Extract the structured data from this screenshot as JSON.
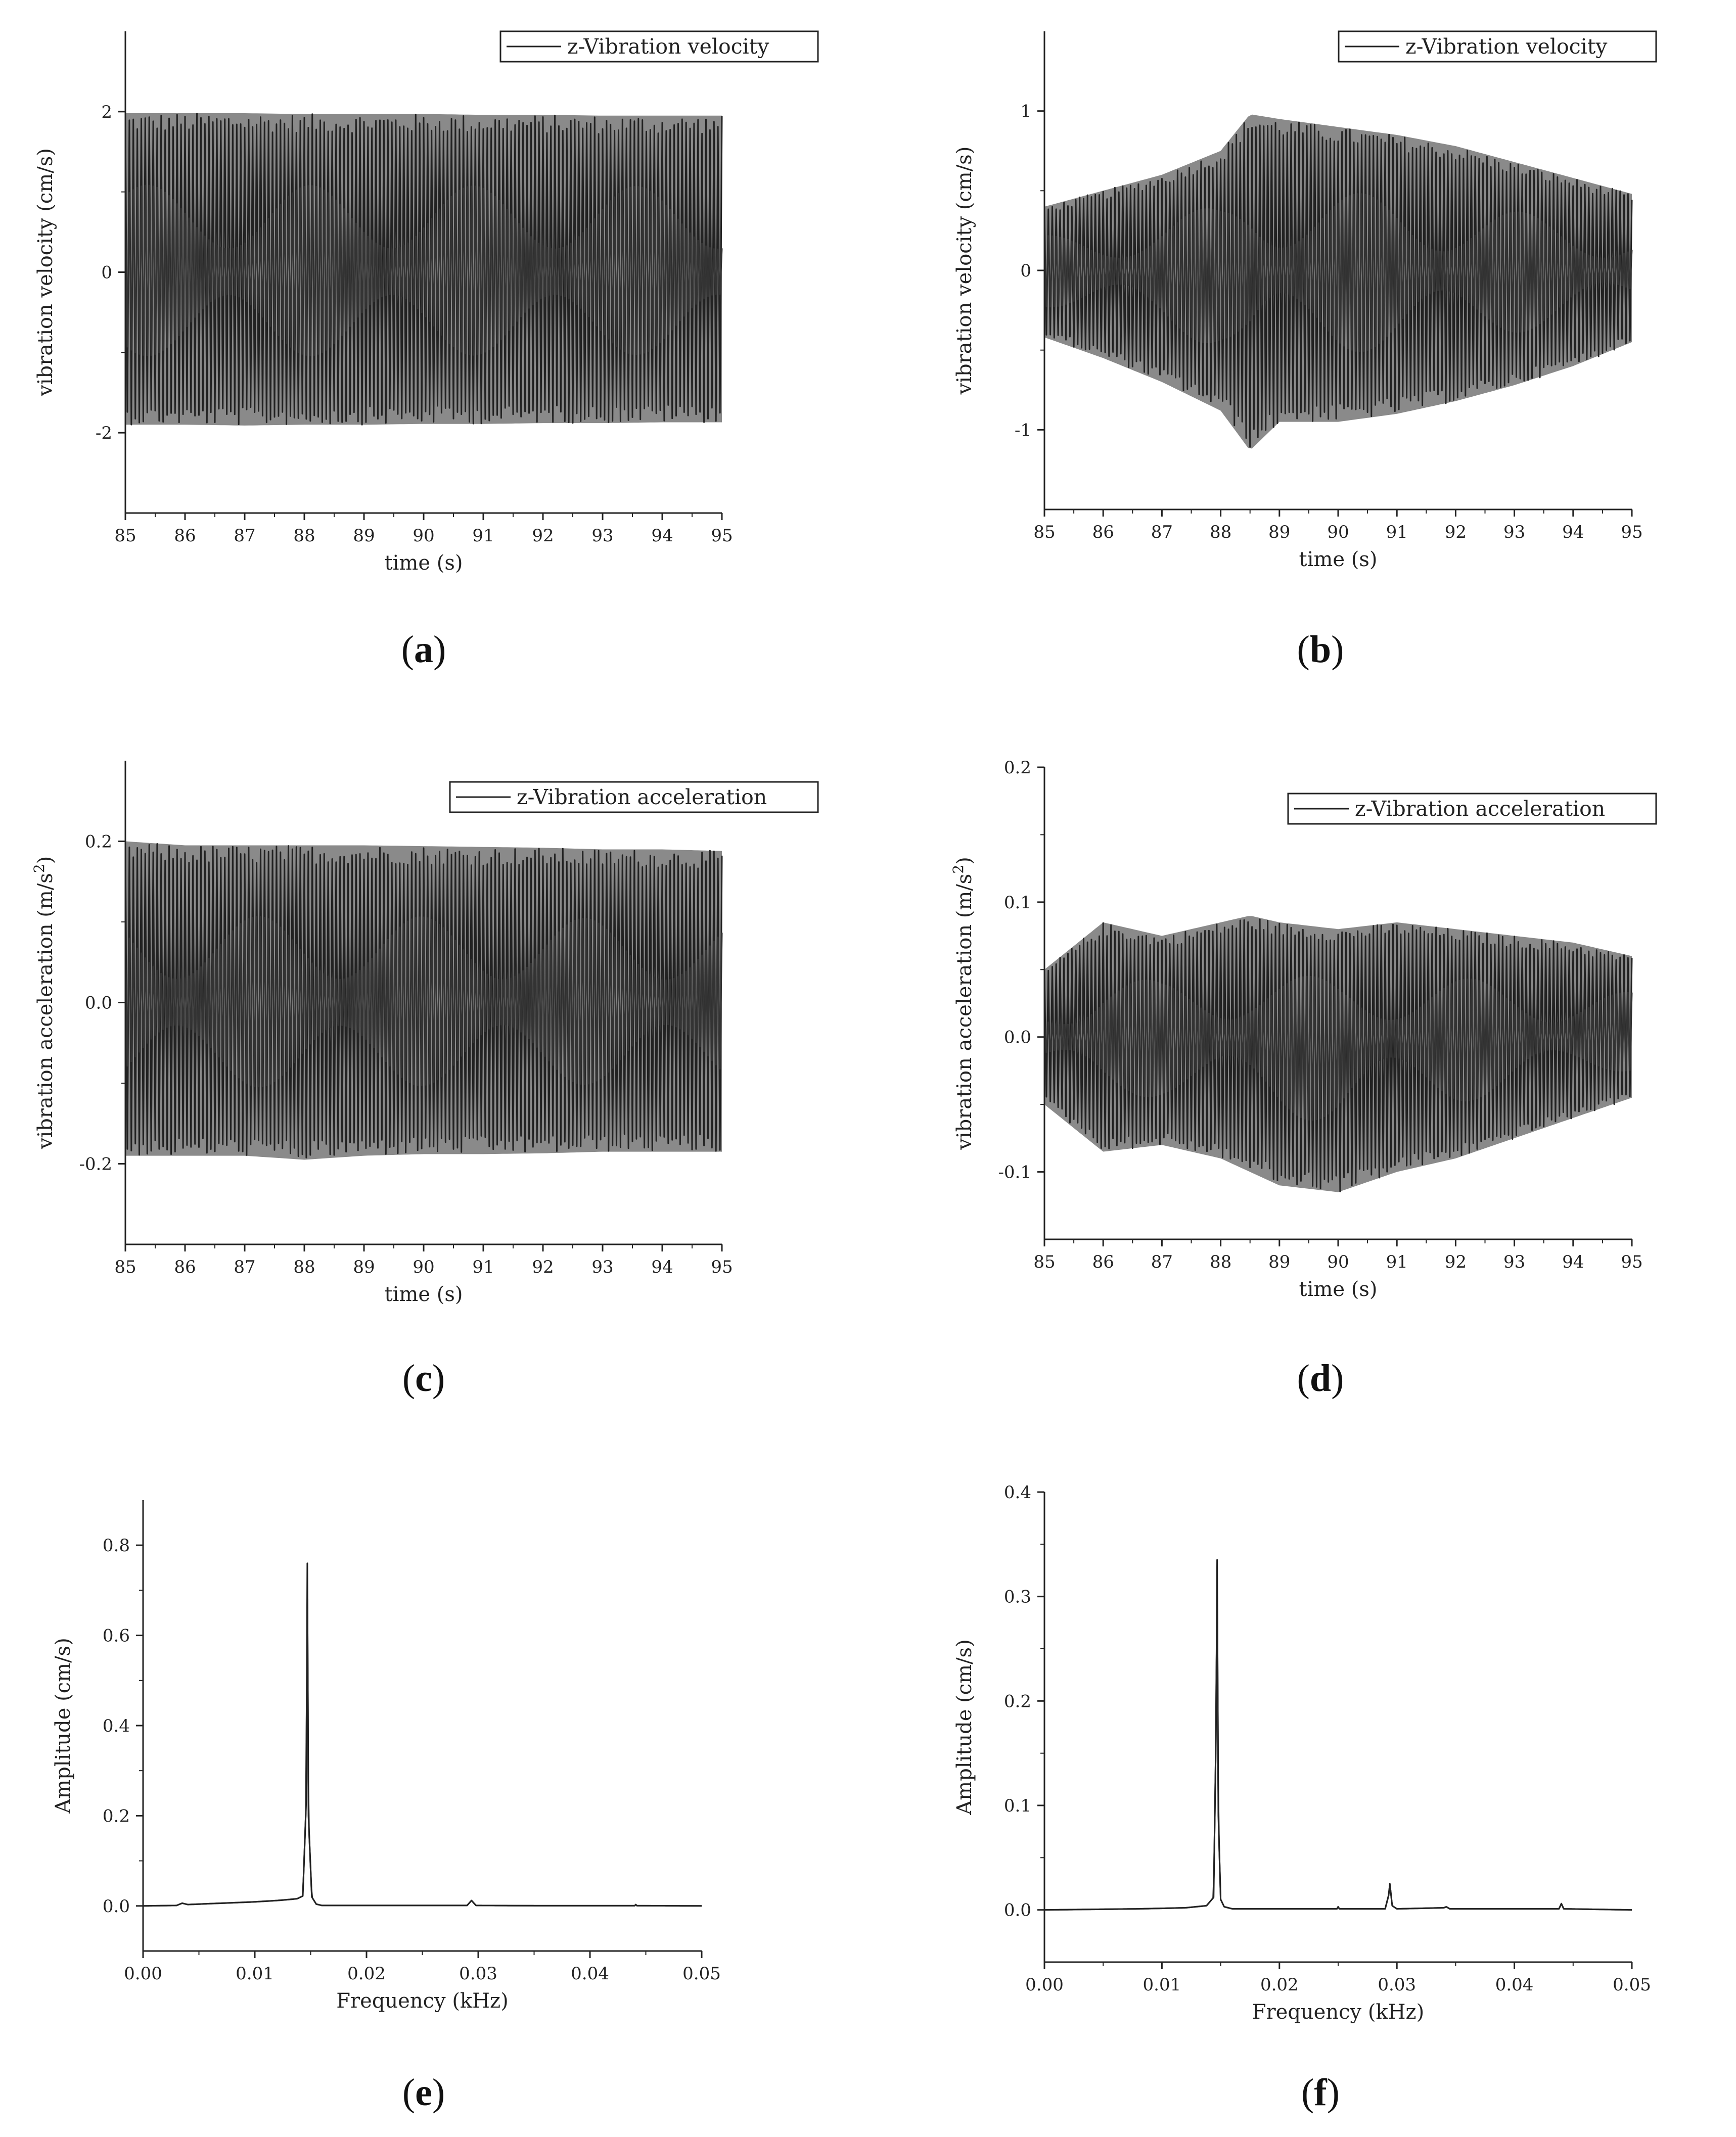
{
  "chart_data": [
    {
      "id": "a",
      "panel_label": "a",
      "type": "line",
      "legend": "z-Vibration velocity",
      "legend_placement": "top-right",
      "xlabel": "time (s)",
      "ylabel": "vibration velocity (cm/s)",
      "xlim": [
        85,
        95
      ],
      "ylim": [
        -3,
        3
      ],
      "xticks": [
        85,
        86,
        87,
        88,
        89,
        90,
        91,
        92,
        93,
        94,
        95
      ],
      "xtick_labels": [
        "85",
        "86",
        "87",
        "88",
        "89",
        "90",
        "91",
        "92",
        "93",
        "94",
        "95"
      ],
      "yticks": [
        -2,
        0,
        2
      ],
      "ytick_labels": [
        "-2",
        "0",
        "2"
      ],
      "grid": false,
      "series": [
        {
          "signal": "oscillation",
          "cycles_per_unit": 15,
          "x_range": [
            85,
            95
          ],
          "envelope_x": [
            85,
            86,
            87,
            88,
            89,
            90,
            91,
            92,
            93,
            94,
            95
          ],
          "envelope_upper": [
            1.98,
            1.98,
            1.98,
            1.97,
            1.97,
            1.97,
            1.96,
            1.96,
            1.95,
            1.95,
            1.95
          ],
          "envelope_lower": [
            -1.9,
            -1.9,
            -1.91,
            -1.9,
            -1.9,
            -1.89,
            -1.89,
            -1.88,
            -1.88,
            -1.87,
            -1.87
          ]
        }
      ]
    },
    {
      "id": "b",
      "panel_label": "b",
      "type": "line",
      "legend": "z-Vibration velocity",
      "legend_placement": "top-right",
      "xlabel": "time (s)",
      "ylabel": "vibration velocity (cm/s)",
      "xlim": [
        85,
        95
      ],
      "ylim": [
        -1.5,
        1.5
      ],
      "xticks": [
        85,
        86,
        87,
        88,
        89,
        90,
        91,
        92,
        93,
        94,
        95
      ],
      "xtick_labels": [
        "85",
        "86",
        "87",
        "88",
        "89",
        "90",
        "91",
        "92",
        "93",
        "94",
        "95"
      ],
      "yticks": [
        -1,
        0,
        1
      ],
      "ytick_labels": [
        "-1",
        "0",
        "1"
      ],
      "grid": false,
      "series": [
        {
          "signal": "oscillation",
          "cycles_per_unit": 15,
          "x_range": [
            85,
            95
          ],
          "envelope_x": [
            85,
            86,
            87,
            88,
            88.5,
            89,
            90,
            91,
            92,
            93,
            94,
            95
          ],
          "envelope_upper": [
            0.4,
            0.5,
            0.6,
            0.75,
            0.98,
            0.95,
            0.9,
            0.85,
            0.78,
            0.68,
            0.58,
            0.48
          ],
          "envelope_lower": [
            -0.42,
            -0.55,
            -0.7,
            -0.88,
            -1.13,
            -0.95,
            -0.95,
            -0.9,
            -0.82,
            -0.72,
            -0.6,
            -0.45
          ]
        }
      ]
    },
    {
      "id": "c",
      "panel_label": "c",
      "type": "line",
      "legend": "z-Vibration acceleration",
      "legend_placement": "top-right",
      "xlabel": "time (s)",
      "ylabel": "vibration acceleration (m/s",
      "ylabel_superscript": "2",
      "ylabel_suffix": ")",
      "xlim": [
        85,
        95
      ],
      "ylim": [
        -0.3,
        0.3
      ],
      "xticks": [
        85,
        86,
        87,
        88,
        89,
        90,
        91,
        92,
        93,
        94,
        95
      ],
      "xtick_labels": [
        "85",
        "86",
        "87",
        "88",
        "89",
        "90",
        "91",
        "92",
        "93",
        "94",
        "95"
      ],
      "yticks": [
        -0.2,
        0,
        0.2
      ],
      "ytick_labels": [
        "-0.2",
        "0.0",
        "0.2"
      ],
      "grid": false,
      "series": [
        {
          "signal": "oscillation",
          "cycles_per_unit": 15,
          "x_range": [
            85,
            95
          ],
          "envelope_x": [
            85,
            86,
            87,
            88,
            89,
            90,
            91,
            92,
            93,
            94,
            95
          ],
          "envelope_upper": [
            0.2,
            0.195,
            0.195,
            0.195,
            0.195,
            0.194,
            0.193,
            0.192,
            0.19,
            0.19,
            0.188
          ],
          "envelope_lower": [
            -0.19,
            -0.19,
            -0.19,
            -0.195,
            -0.19,
            -0.188,
            -0.188,
            -0.187,
            -0.185,
            -0.185,
            -0.185
          ]
        }
      ]
    },
    {
      "id": "d",
      "panel_label": "d",
      "type": "line",
      "legend": "z-Vibration acceleration",
      "legend_placement": "top-right",
      "xlabel": "time (s)",
      "ylabel": "vibration acceleration (m/s",
      "ylabel_superscript": "2",
      "ylabel_suffix": ")",
      "xlim": [
        85,
        95
      ],
      "ylim": [
        -0.15,
        0.2
      ],
      "xticks": [
        85,
        86,
        87,
        88,
        89,
        90,
        91,
        92,
        93,
        94,
        95
      ],
      "xtick_labels": [
        "85",
        "86",
        "87",
        "88",
        "89",
        "90",
        "91",
        "92",
        "93",
        "94",
        "95"
      ],
      "yticks": [
        -0.1,
        0,
        0.1,
        0.2
      ],
      "ytick_labels": [
        "-0.1",
        "0.0",
        "0.1",
        "0.2"
      ],
      "grid": false,
      "series": [
        {
          "signal": "oscillation",
          "cycles_per_unit": 15,
          "x_range": [
            85,
            95
          ],
          "envelope_x": [
            85,
            86,
            87,
            88,
            88.5,
            89,
            90,
            91,
            92,
            93,
            94,
            95
          ],
          "envelope_upper": [
            0.05,
            0.085,
            0.075,
            0.085,
            0.09,
            0.085,
            0.08,
            0.085,
            0.08,
            0.075,
            0.07,
            0.06
          ],
          "envelope_lower": [
            -0.05,
            -0.085,
            -0.08,
            -0.09,
            -0.1,
            -0.11,
            -0.115,
            -0.1,
            -0.09,
            -0.075,
            -0.06,
            -0.045
          ]
        }
      ]
    },
    {
      "id": "e",
      "panel_label": "e",
      "type": "line",
      "xlabel": "Frequency (kHz)",
      "ylabel": "Amplitude (cm/s)",
      "xlim": [
        0,
        0.05
      ],
      "ylim": [
        -0.1,
        0.9
      ],
      "xticks": [
        0,
        0.01,
        0.02,
        0.03,
        0.04,
        0.05
      ],
      "xtick_labels": [
        "0.00",
        "0.01",
        "0.02",
        "0.03",
        "0.04",
        "0.05"
      ],
      "yticks": [
        0,
        0.2,
        0.4,
        0.6,
        0.8
      ],
      "ytick_labels": [
        "0.0",
        "0.2",
        "0.4",
        "0.6",
        "0.8"
      ],
      "grid": false,
      "series": [
        {
          "signal": "spectrum",
          "x": [
            0,
            0.003,
            0.0035,
            0.004,
            0.006,
            0.008,
            0.01,
            0.012,
            0.013,
            0.0138,
            0.0143,
            0.0146,
            0.0147,
            0.0148,
            0.0151,
            0.0155,
            0.016,
            0.02,
            0.025,
            0.029,
            0.0294,
            0.0298,
            0.035,
            0.044,
            0.0441,
            0.0442,
            0.05
          ],
          "y": [
            0,
            0.001,
            0.006,
            0.003,
            0.005,
            0.007,
            0.009,
            0.012,
            0.014,
            0.016,
            0.022,
            0.23,
            0.76,
            0.2,
            0.02,
            0.004,
            0.001,
            0.001,
            0.001,
            0.001,
            0.012,
            0.001,
            0.0005,
            0.0005,
            0.003,
            0.0005,
            0
          ]
        }
      ]
    },
    {
      "id": "f",
      "panel_label": "f",
      "type": "line",
      "xlabel": "Frequency (kHz)",
      "ylabel": "Amplitude (cm/s)",
      "xlim": [
        0,
        0.05
      ],
      "ylim": [
        -0.05,
        0.4
      ],
      "xticks": [
        0,
        0.01,
        0.02,
        0.03,
        0.04,
        0.05
      ],
      "xtick_labels": [
        "0.00",
        "0.01",
        "0.02",
        "0.03",
        "0.04",
        "0.05"
      ],
      "yticks": [
        0,
        0.1,
        0.2,
        0.3,
        0.4
      ],
      "ytick_labels": [
        "0.0",
        "0.1",
        "0.2",
        "0.3",
        "0.4"
      ],
      "grid": false,
      "series": [
        {
          "signal": "spectrum",
          "x": [
            0,
            0.004,
            0.008,
            0.012,
            0.0138,
            0.0144,
            0.0146,
            0.0147,
            0.0148,
            0.015,
            0.0153,
            0.016,
            0.02,
            0.0249,
            0.025,
            0.0251,
            0.029,
            0.0293,
            0.0294,
            0.0296,
            0.03,
            0.034,
            0.0342,
            0.0345,
            0.0438,
            0.044,
            0.0442,
            0.05
          ],
          "y": [
            0,
            0.0005,
            0.001,
            0.002,
            0.004,
            0.012,
            0.165,
            0.335,
            0.09,
            0.01,
            0.003,
            0.001,
            0.001,
            0.001,
            0.003,
            0.001,
            0.001,
            0.014,
            0.025,
            0.004,
            0.001,
            0.002,
            0.003,
            0.001,
            0.001,
            0.006,
            0.001,
            0
          ]
        }
      ]
    }
  ]
}
